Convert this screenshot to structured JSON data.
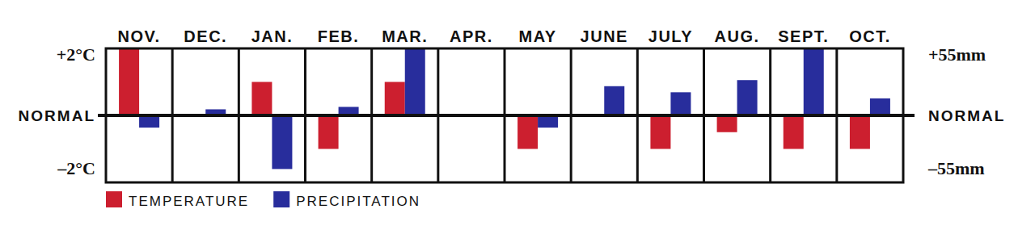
{
  "chart_data": {
    "type": "bar",
    "categories": [
      "NOV.",
      "DEC.",
      "JAN.",
      "FEB.",
      "MAR.",
      "APR.",
      "MAY",
      "JUNE",
      "JULY",
      "AUG.",
      "SEPT.",
      "OCT."
    ],
    "series": [
      {
        "name": "TEMPERATURE",
        "color": "#cc1f2f",
        "values": [
          2,
          0,
          1,
          -1,
          1,
          0,
          -1,
          0,
          -1,
          -0.5,
          -1,
          -1
        ]
      },
      {
        "name": "PRECIPITATION",
        "color": "#282d9c",
        "axis": "y2",
        "values": [
          -10,
          5,
          -44,
          7,
          55,
          0,
          -10,
          24,
          19,
          29,
          55,
          14
        ]
      }
    ],
    "ylim": [
      -2,
      2
    ],
    "yticks": [
      {
        "value": 2,
        "label": "+2°C"
      },
      {
        "value": 0,
        "label": "NORMAL"
      },
      {
        "value": -2,
        "label": "–2°C"
      }
    ],
    "y2lim": [
      -55,
      55
    ],
    "y2ticks": [
      {
        "value": 55,
        "label": "+55mm"
      },
      {
        "value": 0,
        "label": "NORMAL"
      },
      {
        "value": -55,
        "label": "–55mm"
      }
    ],
    "grid": false,
    "legend": "bottom-left"
  }
}
